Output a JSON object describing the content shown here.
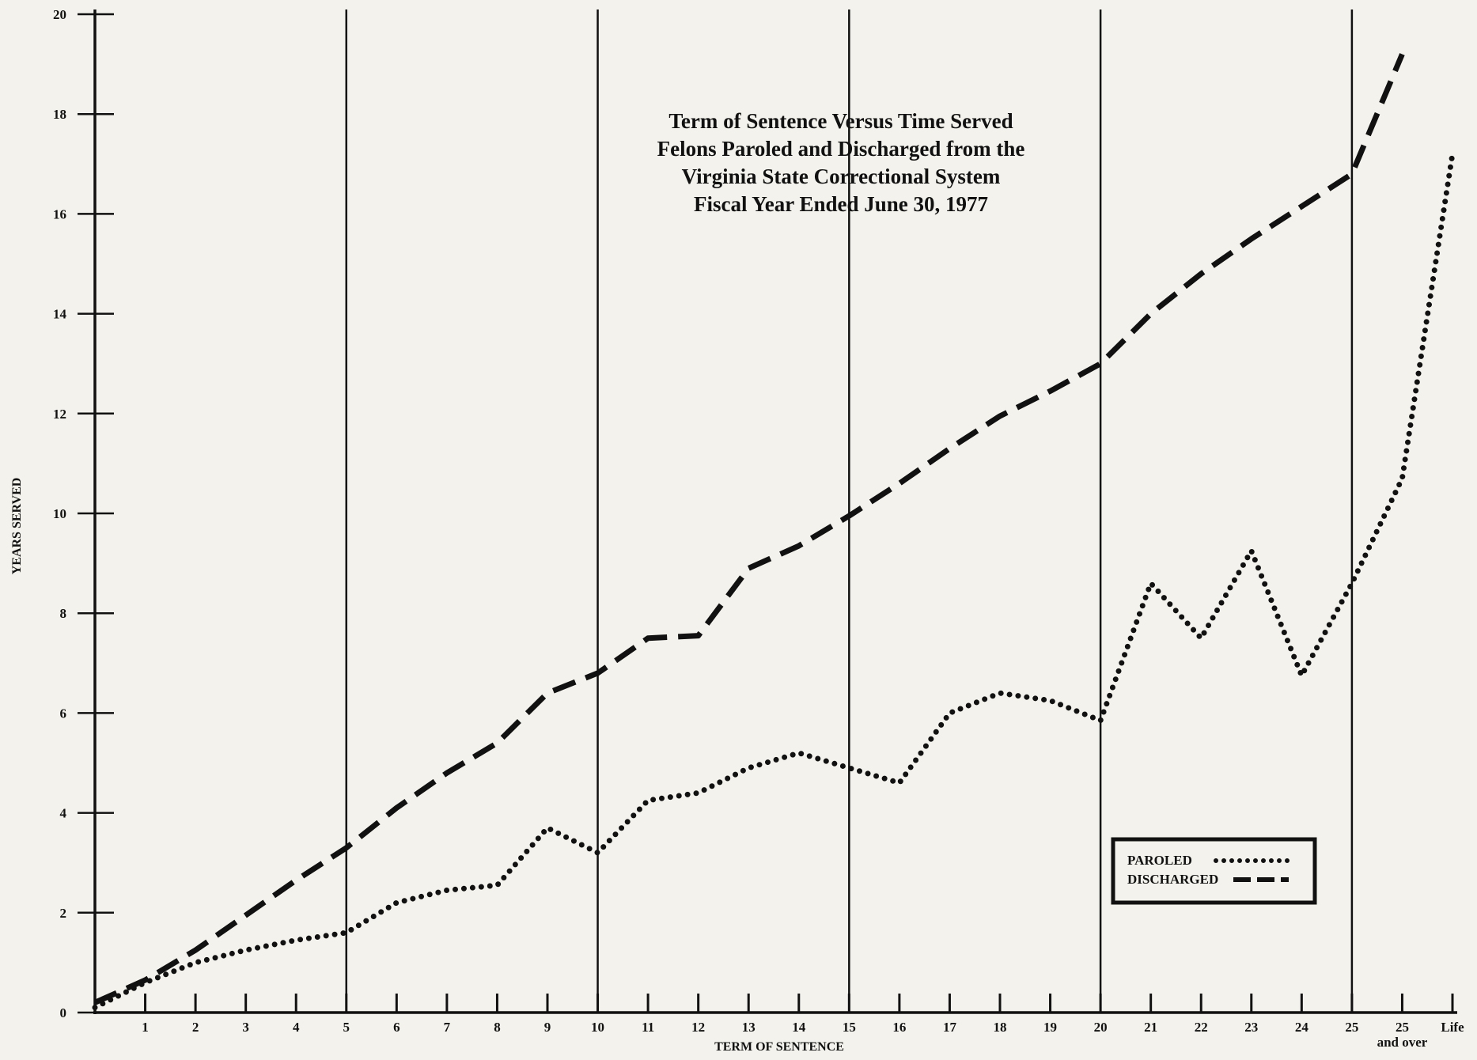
{
  "chart_data": {
    "type": "line",
    "title_lines": [
      "Term of Sentence Versus Time Served",
      "Felons Paroled and Discharged from the",
      "Virginia State Correctional System",
      "Fiscal Year Ended June 30, 1977"
    ],
    "xlabel": "TERM OF SENTENCE",
    "ylabel": "YEARS SERVED",
    "x_tick_labels": [
      {
        "x": 1,
        "label": "1"
      },
      {
        "x": 2,
        "label": "2"
      },
      {
        "x": 3,
        "label": "3"
      },
      {
        "x": 4,
        "label": "4"
      },
      {
        "x": 5,
        "label": "5"
      },
      {
        "x": 6,
        "label": "6"
      },
      {
        "x": 7,
        "label": "7"
      },
      {
        "x": 8,
        "label": "8"
      },
      {
        "x": 9,
        "label": "9"
      },
      {
        "x": 10,
        "label": "10"
      },
      {
        "x": 11,
        "label": "11"
      },
      {
        "x": 12,
        "label": "12"
      },
      {
        "x": 13,
        "label": "13"
      },
      {
        "x": 14,
        "label": "14"
      },
      {
        "x": 15,
        "label": "15"
      },
      {
        "x": 16,
        "label": "16"
      },
      {
        "x": 17,
        "label": "17"
      },
      {
        "x": 18,
        "label": "18"
      },
      {
        "x": 19,
        "label": "19"
      },
      {
        "x": 20,
        "label": "20"
      },
      {
        "x": 21,
        "label": "21"
      },
      {
        "x": 22,
        "label": "22"
      },
      {
        "x": 23,
        "label": "23"
      },
      {
        "x": 24,
        "label": "24"
      },
      {
        "x": 25,
        "label": "25"
      },
      {
        "x": 26,
        "label": "25",
        "sublabel": "and over"
      },
      {
        "x": 27,
        "label": "Life"
      }
    ],
    "y_ticks": [
      0,
      2,
      4,
      6,
      8,
      10,
      12,
      14,
      16,
      18,
      20
    ],
    "xlim": [
      0,
      27
    ],
    "ylim": [
      0,
      20
    ],
    "vertical_gridlines_at": [
      5,
      10,
      15,
      20,
      25
    ],
    "series": [
      {
        "name": "PAROLED",
        "style": "dotted",
        "points": [
          [
            0,
            0.1
          ],
          [
            1,
            0.6
          ],
          [
            2,
            1.0
          ],
          [
            3,
            1.25
          ],
          [
            4,
            1.45
          ],
          [
            5,
            1.6
          ],
          [
            6,
            2.2
          ],
          [
            7,
            2.45
          ],
          [
            8,
            2.55
          ],
          [
            9,
            3.7
          ],
          [
            10,
            3.2
          ],
          [
            11,
            4.25
          ],
          [
            12,
            4.4
          ],
          [
            13,
            4.9
          ],
          [
            14,
            5.2
          ],
          [
            15,
            4.9
          ],
          [
            16,
            4.6
          ],
          [
            17,
            6.0
          ],
          [
            18,
            6.4
          ],
          [
            19,
            6.25
          ],
          [
            20,
            5.85
          ],
          [
            21,
            8.6
          ],
          [
            22,
            7.5
          ],
          [
            23,
            9.25
          ],
          [
            24,
            6.75
          ],
          [
            25,
            8.6
          ],
          [
            26,
            10.7
          ],
          [
            27,
            17.2
          ]
        ]
      },
      {
        "name": "DISCHARGED",
        "style": "dashed",
        "points": [
          [
            0,
            0.2
          ],
          [
            1,
            0.65
          ],
          [
            2,
            1.25
          ],
          [
            3,
            1.95
          ],
          [
            4,
            2.65
          ],
          [
            5,
            3.3
          ],
          [
            6,
            4.1
          ],
          [
            7,
            4.8
          ],
          [
            8,
            5.4
          ],
          [
            9,
            6.4
          ],
          [
            10,
            6.8
          ],
          [
            11,
            7.5
          ],
          [
            12,
            7.55
          ],
          [
            13,
            8.9
          ],
          [
            14,
            9.35
          ],
          [
            15,
            9.95
          ],
          [
            16,
            10.6
          ],
          [
            17,
            11.3
          ],
          [
            18,
            11.95
          ],
          [
            19,
            12.45
          ],
          [
            20,
            13.0
          ],
          [
            21,
            14.0
          ],
          [
            22,
            14.8
          ],
          [
            23,
            15.5
          ],
          [
            24,
            16.15
          ],
          [
            25,
            16.8
          ],
          [
            26,
            19.2
          ]
        ]
      }
    ],
    "legend": {
      "position": "bottom-right",
      "entries": [
        "PAROLED",
        "DISCHARGED"
      ]
    },
    "colors": {
      "ink": "#111111",
      "paper": "#f3f2ec"
    }
  }
}
